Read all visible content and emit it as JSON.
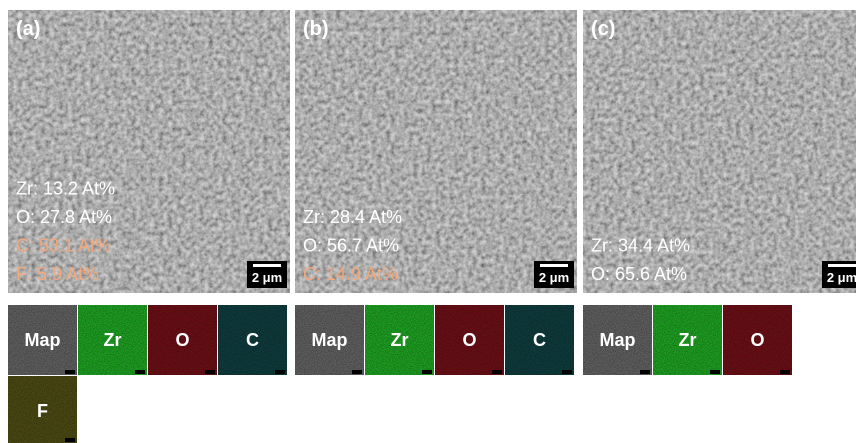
{
  "panels": [
    {
      "label": "(a)",
      "composition": [
        {
          "text": "Zr: 13.2 At%",
          "color": "#ffffff"
        },
        {
          "text": "O: 27.8 At%",
          "color": "#ffffff"
        },
        {
          "text": "C: 53.1 At%",
          "color": "#f2a97e"
        },
        {
          "text": "F: 5.9 At%",
          "color": "#f2a97e"
        }
      ],
      "scale_bar": "2 μm",
      "maps": [
        "Map",
        "Zr",
        "O",
        "C",
        "F"
      ]
    },
    {
      "label": "(b)",
      "composition": [
        {
          "text": "Zr: 28.4 At%",
          "color": "#ffffff"
        },
        {
          "text": "O: 56.7 At%",
          "color": "#ffffff"
        },
        {
          "text": "C: 14.9 At%",
          "color": "#f2a97e"
        }
      ],
      "scale_bar": "2 μm",
      "maps": [
        "Map",
        "Zr",
        "O",
        "C"
      ]
    },
    {
      "label": "(c)",
      "composition": [
        {
          "text": "Zr: 34.4 At%",
          "color": "#ffffff"
        },
        {
          "text": "O: 65.6 At%",
          "color": "#ffffff"
        }
      ],
      "scale_bar": "2 μm",
      "maps": [
        "Map",
        "Zr",
        "O"
      ]
    }
  ]
}
